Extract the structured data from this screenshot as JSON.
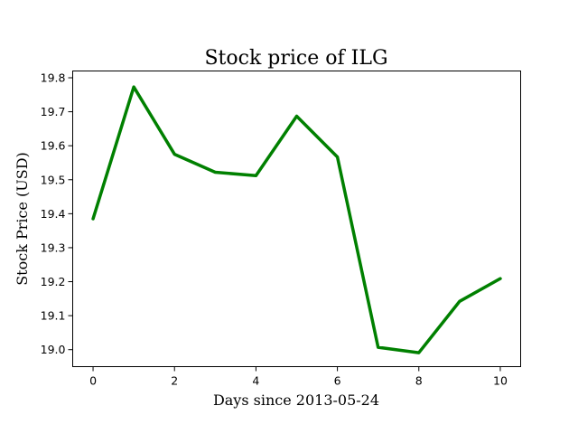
{
  "chart_data": {
    "type": "line",
    "title": "Stock price of ILG",
    "xlabel": "Days since 2013-05-24",
    "ylabel": "Stock Price (USD)",
    "xlim": [
      -0.5,
      10.5
    ],
    "ylim": [
      18.95,
      19.82
    ],
    "xticks": [
      0,
      2,
      4,
      6,
      8,
      10
    ],
    "xtick_labels": [
      "0",
      "2",
      "4",
      "6",
      "8",
      "10"
    ],
    "yticks": [
      19.0,
      19.1,
      19.2,
      19.3,
      19.4,
      19.5,
      19.6,
      19.7,
      19.8
    ],
    "ytick_labels": [
      "19.0",
      "19.1",
      "19.2",
      "19.3",
      "19.4",
      "19.5",
      "19.6",
      "19.7",
      "19.8"
    ],
    "grid": false,
    "series": [
      {
        "color": "#008000",
        "x": [
          0,
          1,
          2,
          3,
          4,
          5,
          6,
          7,
          8,
          9,
          10
        ],
        "y": [
          19.385,
          19.773,
          19.575,
          19.522,
          19.512,
          19.687,
          19.567,
          19.007,
          18.991,
          19.142,
          19.209
        ]
      }
    ]
  }
}
